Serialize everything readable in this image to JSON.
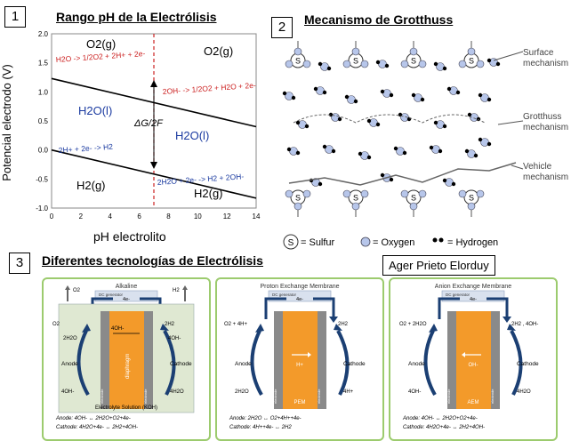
{
  "panel1": {
    "number": "1",
    "title": "Rango pH de la Electrólisis",
    "ylabel": "Potencial electrodo (V)",
    "xlabel": "pH electrolito",
    "region_labels": [
      "O2(g)",
      "O2(g)",
      "H2O(l)",
      "H2O(l)",
      "H2(g)",
      "H2(g)"
    ],
    "reactions": {
      "upper_left": "H2O -> 1/2O2 + 2H+ + 2e-",
      "upper_right": "2OH- -> 1/2O2 + H2O + 2e-",
      "lower_left": "2H+ + 2e- -> H2",
      "lower_right": "2H2O + 2e- -> H2 + 2OH-"
    },
    "gap_label": "ΔG/2F"
  },
  "chart_data": {
    "type": "line",
    "xlabel": "pH electrolito",
    "ylabel": "Potencial electrodo (V)",
    "xlim": [
      0,
      14
    ],
    "ylim": [
      -1.0,
      2.0
    ],
    "xticks": [
      0,
      2,
      4,
      6,
      8,
      10,
      12,
      14
    ],
    "yticks": [
      -1.0,
      -0.5,
      0.0,
      0.5,
      1.0,
      1.5,
      2.0
    ],
    "series": [
      {
        "x": [
          0,
          14
        ],
        "values": [
          1.23,
          0.4
        ],
        "color": "#000000"
      },
      {
        "x": [
          0,
          14
        ],
        "values": [
          0.0,
          -0.83
        ],
        "color": "#000000"
      }
    ],
    "vertical_line": {
      "x": 7,
      "color": "#cc2222",
      "style": "dashed"
    }
  },
  "panel2": {
    "number": "2",
    "title": "Mecanismo de Grotthuss",
    "labels": [
      "Surface mechanism",
      "Grotthuss mechanism",
      "Vehicle mechanism"
    ],
    "legend": [
      {
        "symbol": "S",
        "text": "= Sulfur"
      },
      {
        "symbol": "",
        "text": "= Oxygen"
      },
      {
        "symbol": "",
        "text": "= Hydrogen"
      }
    ]
  },
  "panel3": {
    "number": "3",
    "title": "Diferentes tecnologías de Electrólisis",
    "author": "Ager Prieto Elorduy",
    "cells": [
      {
        "title": "Alkaline",
        "source": "DC generator",
        "electron": "4e-",
        "gas_left": "O2",
        "gas_right": "H2",
        "left_top": "O2",
        "left_mid": "2H2O",
        "left_bot": "4OH-",
        "right_top": "2H2",
        "right_mid": "4OH-",
        "right_bot": "4H2O",
        "anode": "Anode",
        "cathode": "Cathode",
        "membrane_text": "diaphragm",
        "ion": "4OH-",
        "bottom_label": "Electrolyte Solution (KOH)",
        "electrode": "electrode",
        "eq_anode": "Anode: 4OH- ↔ 2H2O+O2+4e-",
        "eq_cathode": "Cathode: 4H2O+4e- ↔ 2H2+4OH-"
      },
      {
        "title": "Proton Exchange Membrane",
        "source": "DC generator",
        "electron": "4e-",
        "gas_left": "",
        "gas_right": "",
        "left_top": "O2 + 4H+",
        "left_mid": "",
        "left_bot": "2H2O",
        "right_top": "2H2",
        "right_mid": "",
        "right_bot": "4H+",
        "anode": "Anode",
        "cathode": "Cathode",
        "membrane_text": "PEM",
        "ion": "H+",
        "bottom_label": "",
        "electrode": "electrode",
        "eq_anode": "Anode: 2H2O ↔ O2+4H++4e-",
        "eq_cathode": "Cathode: 4H++4e- ↔ 2H2"
      },
      {
        "title": "Anion Exchange Membrane",
        "source": "DC generator",
        "electron": "4e-",
        "gas_left": "",
        "gas_right": "",
        "left_top": "O2 + 2H2O",
        "left_mid": "",
        "left_bot": "4OH-",
        "right_top": "2H2 , 4OH-",
        "right_mid": "",
        "right_bot": "4H2O",
        "anode": "Anode",
        "cathode": "Cathode",
        "membrane_text": "AEM",
        "ion": "OH-",
        "bottom_label": "",
        "electrode": "electrode",
        "eq_anode": "Anode: 4OH- ↔ 2H2O+O2+4e-",
        "eq_cathode": "Cathode: 4H2O+4e- ↔ 2H2+4OH-"
      }
    ]
  },
  "colors": {
    "red": "#cc2222",
    "blue": "#1a3aa0",
    "orange": "#f39a2a",
    "green": "#9ccb6e",
    "navy": "#1b3f73"
  }
}
